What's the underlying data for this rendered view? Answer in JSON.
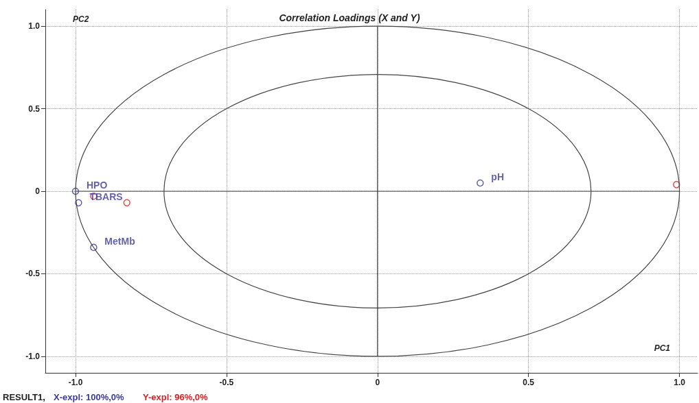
{
  "chart_data": {
    "type": "scatter",
    "title": "Correlation Loadings (X and Y)",
    "xlabel": "PC1",
    "ylabel": "PC2",
    "xlim": [
      -1.1,
      1.06
    ],
    "ylim": [
      -1.1,
      1.1
    ],
    "xticks": [
      {
        "value": -1,
        "label": "-1.0"
      },
      {
        "value": -0.5,
        "label": "-0.5"
      },
      0,
      0.5,
      {
        "value": 1,
        "label": "1.0"
      }
    ],
    "yticks": [
      {
        "value": -1,
        "label": "-1.0"
      },
      {
        "value": -0.5,
        "label": "-0.5"
      },
      0,
      0.5,
      {
        "value": 1,
        "label": "1.0"
      }
    ],
    "grid": true,
    "series": [
      {
        "marker": "circle",
        "color": "#3a3a9a",
        "x": [
          -1.0,
          -0.99,
          -0.94,
          0.34
        ],
        "values": [
          0.0,
          -0.07,
          -0.34,
          0.05
        ]
      },
      {
        "marker": "circle",
        "color": "#e02020",
        "x": [
          -0.94,
          -0.83,
          0.99
        ],
        "values": [
          -0.03,
          -0.07,
          0.04
        ]
      }
    ],
    "annotations": [
      {
        "text": "HPO",
        "x": -1.0,
        "y": 0.0
      },
      {
        "text": "TBARS",
        "x": -0.99,
        "y": -0.07
      },
      {
        "text": "MetMb",
        "x": -0.94,
        "y": -0.34
      },
      {
        "text": "pH",
        "x": 0.34,
        "y": 0.05
      },
      "RESULT1,",
      "X-expl: 100%,0%",
      "Y-expl: 96%,0%"
    ]
  }
}
